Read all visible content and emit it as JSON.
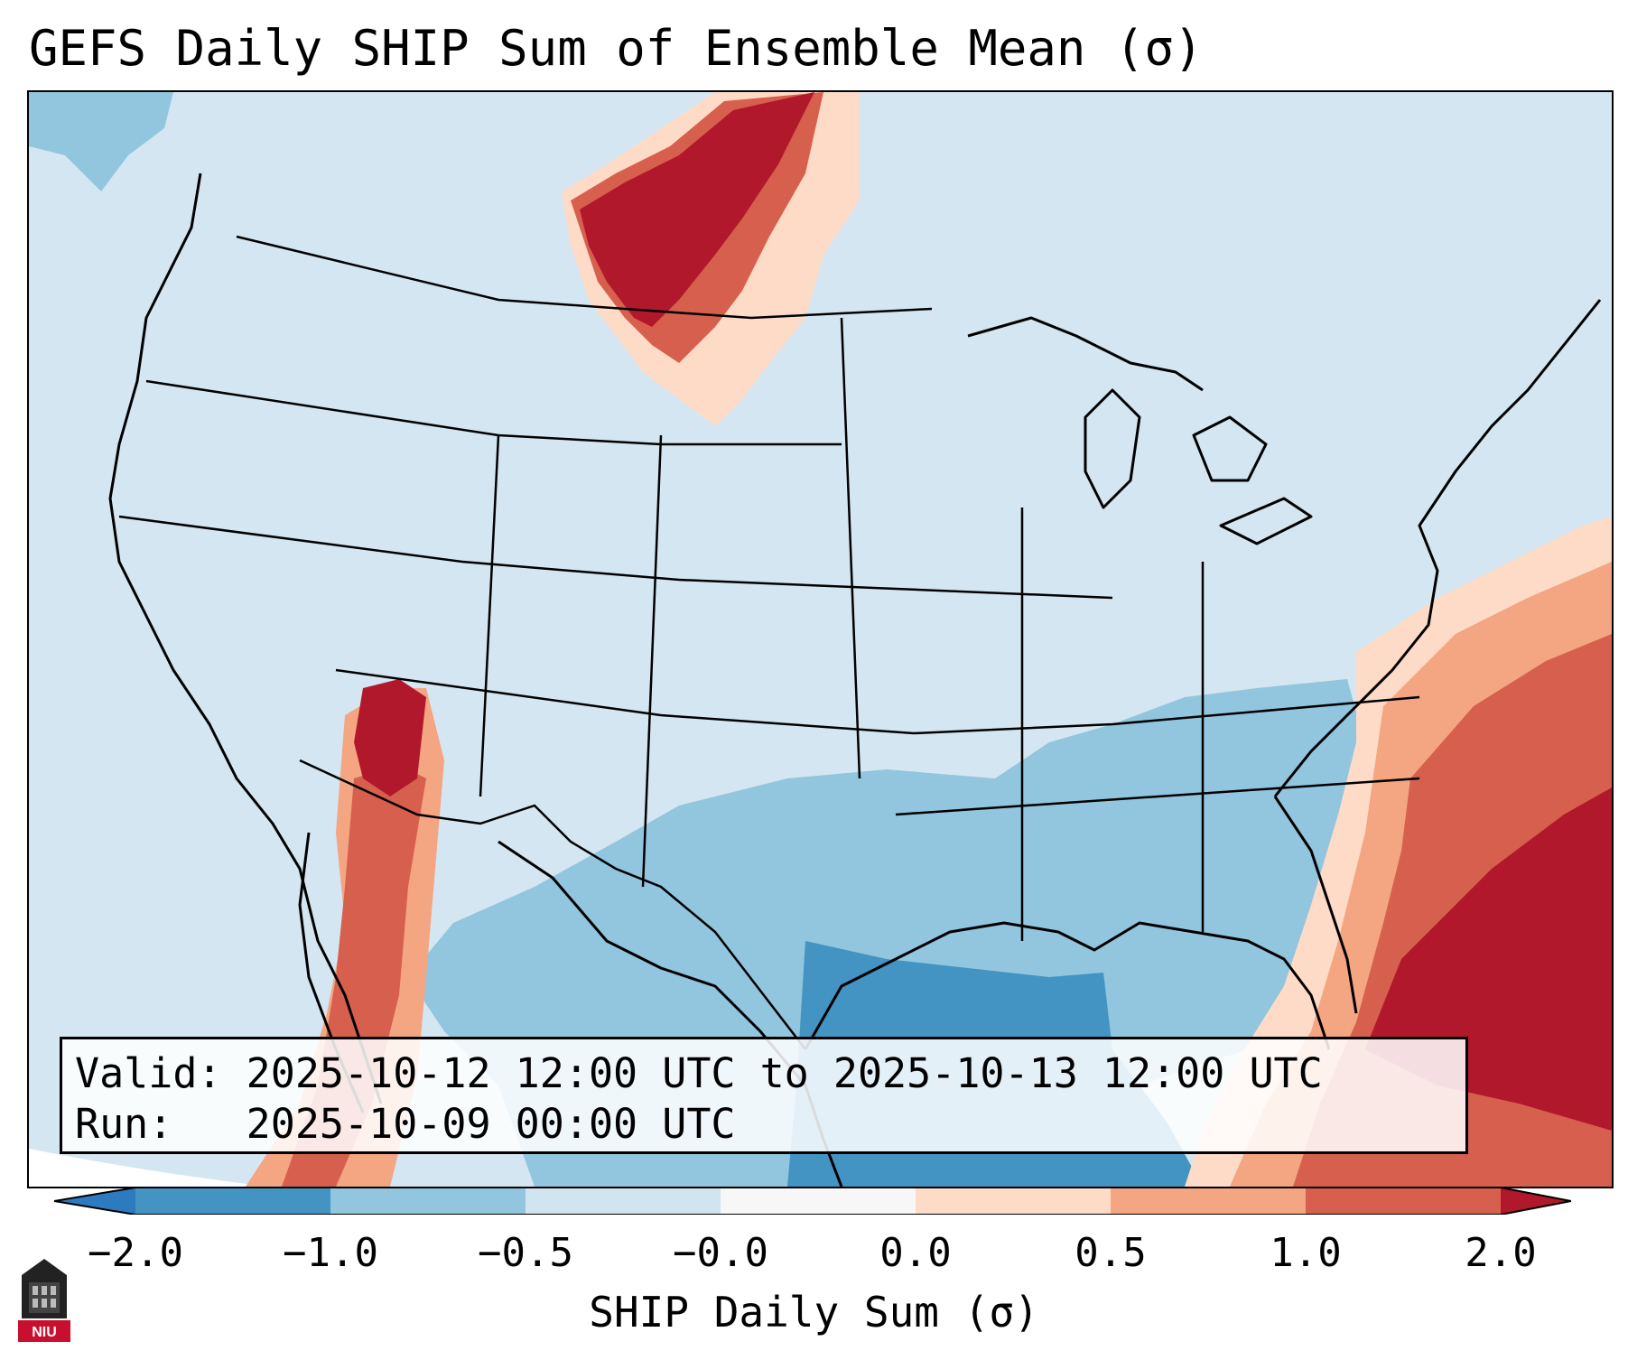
{
  "title": "GEFS Daily SHIP Sum of Ensemble Mean (σ)",
  "info": {
    "valid_label": "Valid:",
    "valid_value": "2025-10-12 12:00 UTC to 2025-10-13 12:00 UTC",
    "run_label": "Run:",
    "run_value": "2025-10-09 00:00 UTC"
  },
  "colorbar": {
    "label": "SHIP Daily Sum (σ)",
    "ticks": [
      "−2.0",
      "−1.0",
      "−0.5",
      "−0.0",
      "0.0",
      "0.5",
      "1.0",
      "2.0"
    ],
    "bins": [
      {
        "range": "< -2.0",
        "color": "#2c7bbf"
      },
      {
        "range": "-2.0 to -1.0",
        "color": "#4393c3"
      },
      {
        "range": "-1.0 to -0.5",
        "color": "#92c5de"
      },
      {
        "range": "-0.5 to 0.0",
        "color": "#d1e5f0"
      },
      {
        "range": "0.0 to 0.5",
        "color": "#fddbc7"
      },
      {
        "range": "0.5 to 1.0",
        "color": "#f4a582"
      },
      {
        "range": "1.0 to 2.0",
        "color": "#d6604d"
      },
      {
        "range": "> 2.0",
        "color": "#b2182b"
      }
    ]
  },
  "logo_text": "NIU",
  "colors": {
    "background": "#d4e6f1",
    "strong_positive": "#b2182b",
    "moderate_positive": "#d6604d",
    "weak_positive": "#f4a582",
    "slight_positive": "#fddbc7",
    "slight_negative": "#92c5de",
    "moderate_negative": "#4393c3"
  }
}
